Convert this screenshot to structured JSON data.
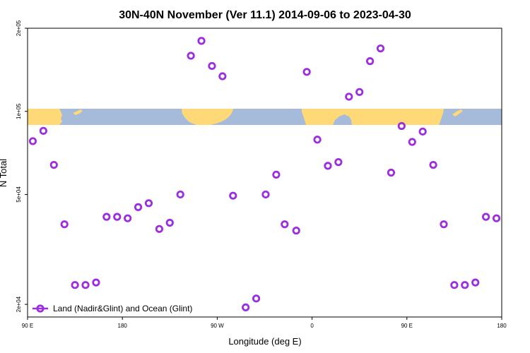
{
  "chart_data": {
    "type": "scatter",
    "title": "30N-40N November (Ver 11.1)   2014-09-06 to 2023-04-30",
    "xlabel": "Longitude (deg E)",
    "ylabel": "N Total",
    "x_range": [
      90,
      540
    ],
    "y_scale": "log",
    "y_range": [
      18000,
      200000
    ],
    "x_ticks": [
      {
        "value": 90,
        "label": "90 E"
      },
      {
        "value": 180,
        "label": "180"
      },
      {
        "value": 270,
        "label": "90 W"
      },
      {
        "value": 360,
        "label": "0"
      },
      {
        "value": 450,
        "label": "90 E"
      },
      {
        "value": 540,
        "label": "180"
      }
    ],
    "y_ticks": [
      {
        "value": 20000,
        "label": "2e+04"
      },
      {
        "value": 50000,
        "label": "5e+04"
      },
      {
        "value": 100000,
        "label": "1e+05"
      },
      {
        "value": 200000,
        "label": "2e+05"
      }
    ],
    "legend": {
      "position": "bottom-left",
      "label": "Land (Nadir&Glint) and Ocean (Glint)"
    },
    "grid": false,
    "colors": {
      "series": "#9b2fe0",
      "land": "#ffd978",
      "ocean": "#a6bbd9"
    },
    "series": [
      {
        "name": "Land (Nadir&Glint) and Ocean (Glint)",
        "points": [
          {
            "x": 95,
            "y": 78000
          },
          {
            "x": 105,
            "y": 85000
          },
          {
            "x": 115,
            "y": 64000
          },
          {
            "x": 125,
            "y": 39000
          },
          {
            "x": 135,
            "y": 23500
          },
          {
            "x": 145,
            "y": 23500
          },
          {
            "x": 155,
            "y": 24000
          },
          {
            "x": 165,
            "y": 41500
          },
          {
            "x": 175,
            "y": 41500
          },
          {
            "x": 185,
            "y": 41000
          },
          {
            "x": 195,
            "y": 45000
          },
          {
            "x": 205,
            "y": 46500
          },
          {
            "x": 215,
            "y": 37500
          },
          {
            "x": 225,
            "y": 39500
          },
          {
            "x": 235,
            "y": 50000
          },
          {
            "x": 245,
            "y": 159000
          },
          {
            "x": 255,
            "y": 180000
          },
          {
            "x": 265,
            "y": 146000
          },
          {
            "x": 275,
            "y": 134000
          },
          {
            "x": 285,
            "y": 49500
          },
          {
            "x": 297,
            "y": 19500
          },
          {
            "x": 307,
            "y": 21000
          },
          {
            "x": 316,
            "y": 50000
          },
          {
            "x": 326,
            "y": 59000
          },
          {
            "x": 334,
            "y": 39000
          },
          {
            "x": 345,
            "y": 37000
          },
          {
            "x": 355,
            "y": 139000
          },
          {
            "x": 365,
            "y": 79000
          },
          {
            "x": 375,
            "y": 63500
          },
          {
            "x": 385,
            "y": 65500
          },
          {
            "x": 395,
            "y": 113000
          },
          {
            "x": 405,
            "y": 117500
          },
          {
            "x": 415,
            "y": 152000
          },
          {
            "x": 425,
            "y": 169000
          },
          {
            "x": 435,
            "y": 60000
          },
          {
            "x": 445,
            "y": 88500
          },
          {
            "x": 455,
            "y": 77500
          },
          {
            "x": 465,
            "y": 84500
          },
          {
            "x": 475,
            "y": 64000
          },
          {
            "x": 485,
            "y": 39000
          },
          {
            "x": 495,
            "y": 23500
          },
          {
            "x": 505,
            "y": 23500
          },
          {
            "x": 515,
            "y": 24000
          },
          {
            "x": 525,
            "y": 41500
          },
          {
            "x": 535,
            "y": 41000
          }
        ]
      }
    ]
  }
}
